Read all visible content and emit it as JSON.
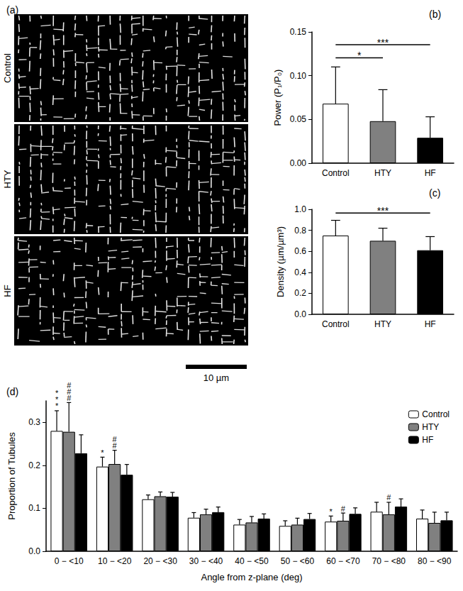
{
  "panel_a": {
    "label": "(a)",
    "rows": [
      "Control",
      "HTY",
      "HF"
    ],
    "scale_bar": "10 µm"
  },
  "chart_data": [
    {
      "type": "bar",
      "title": "(b)",
      "categories": [
        "Control",
        "HTY",
        "HF"
      ],
      "values": [
        0.068,
        0.048,
        0.029
      ],
      "errors": [
        0.042,
        0.036,
        0.024
      ],
      "colors": [
        "#ffffff",
        "#808080",
        "#000000"
      ],
      "y_label": "Power (P₁/P₀)",
      "ylim": [
        0,
        0.15
      ],
      "yticks": [
        {
          "value": 0,
          "label": "0.00"
        },
        0.05,
        {
          "value": 0.1,
          "label": "0.10"
        },
        0.15
      ],
      "grid": false,
      "significance": [
        {
          "from": "Control",
          "to": "HTY",
          "text": "*"
        },
        {
          "from": "Control",
          "to": "HF",
          "text": "***"
        }
      ]
    },
    {
      "type": "bar",
      "title": "(c)",
      "categories": [
        "Control",
        "HTY",
        "HF"
      ],
      "values": [
        0.75,
        0.7,
        0.61
      ],
      "errors": [
        0.145,
        0.12,
        0.13
      ],
      "colors": [
        "#ffffff",
        "#808080",
        "#000000"
      ],
      "y_label": "Density (µm/µm³)",
      "ylim": [
        0,
        1.0
      ],
      "yticks": [
        {
          "value": 0,
          "label": "0.0"
        },
        0.2,
        0.4,
        0.6,
        0.8,
        {
          "value": 1,
          "label": "1.0"
        }
      ],
      "grid": false,
      "significance": [
        {
          "from": "Control",
          "to": "HF",
          "text": "***"
        }
      ]
    },
    {
      "type": "bar",
      "title": "(d)",
      "categories": [
        "0 − <10",
        "10 − <20",
        "20 − <30",
        "30 − <40",
        "40 − <50",
        "50 − <60",
        "60 − <70",
        "70 − <80",
        "80 − <90"
      ],
      "series": [
        {
          "name": "Control",
          "color": "#ffffff",
          "values": [
            0.28,
            0.197,
            0.121,
            0.078,
            0.062,
            0.059,
            0.069,
            0.092,
            0.076
          ],
          "errors": [
            0.047,
            0.022,
            0.01,
            0.012,
            0.012,
            0.012,
            0.013,
            0.022,
            0.02
          ]
        },
        {
          "name": "HTY",
          "color": "#808080",
          "values": [
            0.278,
            0.203,
            0.128,
            0.086,
            0.067,
            0.062,
            0.071,
            0.086,
            0.066
          ],
          "errors": [
            0.068,
            0.032,
            0.01,
            0.012,
            0.014,
            0.015,
            0.018,
            0.028,
            0.025
          ]
        },
        {
          "name": "HF",
          "color": "#000000",
          "values": [
            0.228,
            0.178,
            0.127,
            0.091,
            0.076,
            0.075,
            0.087,
            0.104,
            0.072
          ],
          "errors": [
            0.043,
            0.024,
            0.01,
            0.012,
            0.011,
            0.013,
            0.014,
            0.018,
            0.019
          ]
        }
      ],
      "x_label": "Angle from z-plane (deg)",
      "y_label": "Proportion of Tubules",
      "ylim": [
        0,
        0.35
      ],
      "yticks": [
        {
          "value": 0,
          "label": "0.0"
        },
        0.1,
        0.2,
        0.3
      ],
      "grid": false,
      "legend": "top-right",
      "annotations": [
        {
          "category": "0 − <10",
          "series": "Control",
          "text": "***"
        },
        {
          "category": "0 − <10",
          "series": "HTY",
          "text": "###"
        },
        {
          "category": "10 − <20",
          "series": "Control",
          "text": "*"
        },
        {
          "category": "10 − <20",
          "series": "HTY",
          "text": "##"
        },
        {
          "category": "60 − <70",
          "series": "Control",
          "text": "*"
        },
        {
          "category": "60 − <70",
          "series": "HTY",
          "text": "#"
        },
        {
          "category": "70 − <80",
          "series": "HTY",
          "text": "#"
        }
      ]
    }
  ]
}
